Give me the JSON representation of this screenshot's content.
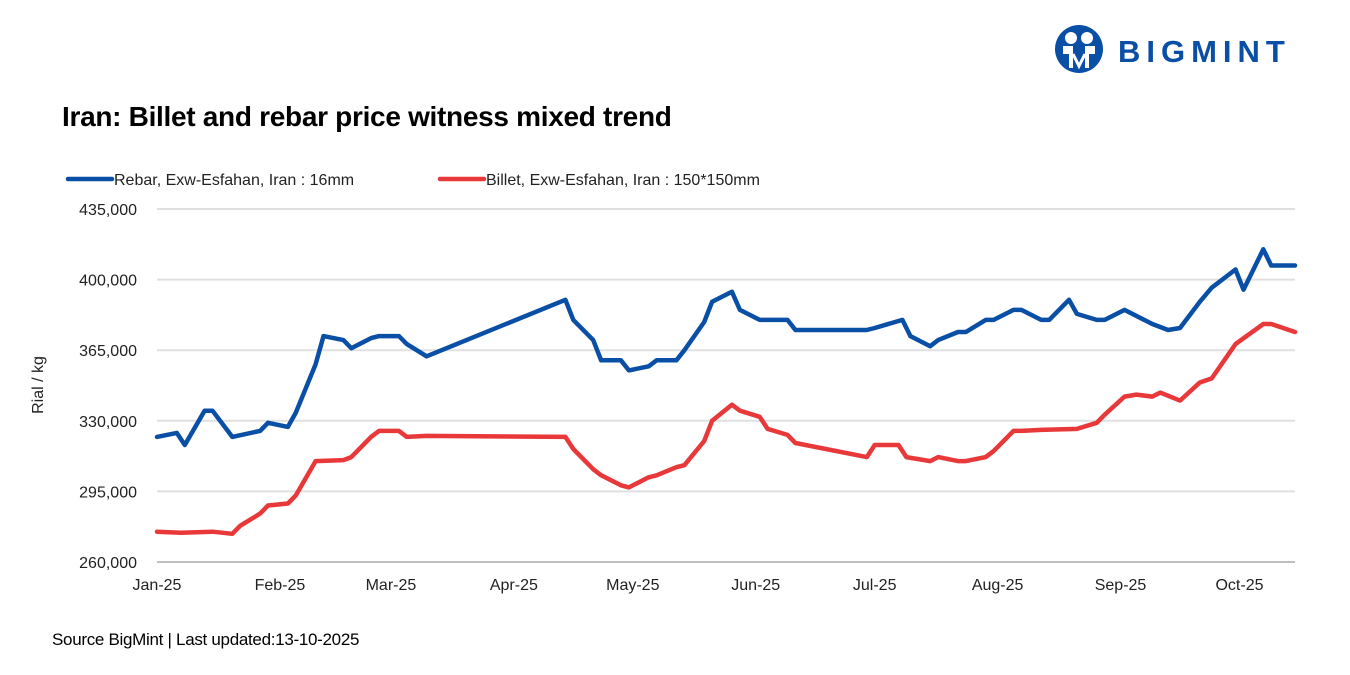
{
  "title": "Iran: Billet and rebar price witness mixed trend",
  "source": "Source BigMint | Last updated:13-10-2025",
  "logo": {
    "text": "BIGMINT",
    "color": "#0a4fa6"
  },
  "chart_data": {
    "type": "line",
    "title": "Iran: Billet and rebar price witness mixed trend",
    "ylabel": "Rial / kg",
    "xlabel": "",
    "ylim": [
      260000,
      435000
    ],
    "yticks": [
      260000,
      295000,
      330000,
      365000,
      400000,
      435000
    ],
    "ytick_labels": [
      "260,000",
      "295,000",
      "330,000",
      "365,000",
      "400,000",
      "435,000"
    ],
    "xlim": [
      "2025-01-01",
      "2025-10-15"
    ],
    "xticks": [
      "2025-01-01",
      "2025-02-01",
      "2025-03-01",
      "2025-04-01",
      "2025-05-01",
      "2025-06-01",
      "2025-07-01",
      "2025-08-01",
      "2025-09-01",
      "2025-10-01"
    ],
    "xtick_labels": [
      "Jan-25",
      "Feb-25",
      "Mar-25",
      "Apr-25",
      "May-25",
      "Jun-25",
      "Jul-25",
      "Aug-25",
      "Sep-25",
      "Oct-25"
    ],
    "grid": "horizontal",
    "legend": "top-left",
    "series": [
      {
        "name": "Rebar, Exw-Esfahan, Iran : 16mm",
        "color": "#0a4fa6",
        "points": [
          [
            "2025-01-01",
            322000
          ],
          [
            "2025-01-06",
            324000
          ],
          [
            "2025-01-08",
            318000
          ],
          [
            "2025-01-13",
            335000
          ],
          [
            "2025-01-15",
            335000
          ],
          [
            "2025-01-20",
            322000
          ],
          [
            "2025-01-27",
            325000
          ],
          [
            "2025-01-29",
            329000
          ],
          [
            "2025-02-03",
            327000
          ],
          [
            "2025-02-05",
            334000
          ],
          [
            "2025-02-10",
            358000
          ],
          [
            "2025-02-12",
            372000
          ],
          [
            "2025-02-17",
            370000
          ],
          [
            "2025-02-19",
            366000
          ],
          [
            "2025-02-24",
            371000
          ],
          [
            "2025-02-26",
            372000
          ],
          [
            "2025-03-03",
            372000
          ],
          [
            "2025-03-05",
            368000
          ],
          [
            "2025-03-10",
            362000
          ],
          [
            "2025-04-14",
            390000
          ],
          [
            "2025-04-16",
            380000
          ],
          [
            "2025-04-21",
            370000
          ],
          [
            "2025-04-23",
            360000
          ],
          [
            "2025-04-28",
            360000
          ],
          [
            "2025-04-30",
            355000
          ],
          [
            "2025-05-05",
            357000
          ],
          [
            "2025-05-07",
            360000
          ],
          [
            "2025-05-12",
            360000
          ],
          [
            "2025-05-14",
            365000
          ],
          [
            "2025-05-19",
            379000
          ],
          [
            "2025-05-21",
            389000
          ],
          [
            "2025-05-26",
            394000
          ],
          [
            "2025-05-28",
            385000
          ],
          [
            "2025-06-02",
            380000
          ],
          [
            "2025-06-09",
            380000
          ],
          [
            "2025-06-11",
            375000
          ],
          [
            "2025-06-16",
            375000
          ],
          [
            "2025-06-29",
            375000
          ],
          [
            "2025-07-01",
            376000
          ],
          [
            "2025-07-08",
            380000
          ],
          [
            "2025-07-10",
            372000
          ],
          [
            "2025-07-15",
            367000
          ],
          [
            "2025-07-17",
            370000
          ],
          [
            "2025-07-22",
            374000
          ],
          [
            "2025-07-24",
            374000
          ],
          [
            "2025-07-29",
            380000
          ],
          [
            "2025-07-31",
            380000
          ],
          [
            "2025-08-05",
            385000
          ],
          [
            "2025-08-07",
            385000
          ],
          [
            "2025-08-12",
            380000
          ],
          [
            "2025-08-14",
            380000
          ],
          [
            "2025-08-19",
            390000
          ],
          [
            "2025-08-21",
            383000
          ],
          [
            "2025-08-26",
            380000
          ],
          [
            "2025-08-28",
            380000
          ],
          [
            "2025-09-02",
            385000
          ],
          [
            "2025-09-09",
            378000
          ],
          [
            "2025-09-13",
            375000
          ],
          [
            "2025-09-16",
            376000
          ],
          [
            "2025-09-21",
            389000
          ],
          [
            "2025-09-24",
            396000
          ],
          [
            "2025-09-30",
            405000
          ],
          [
            "2025-10-02",
            395000
          ],
          [
            "2025-10-07",
            415000
          ],
          [
            "2025-10-09",
            407000
          ],
          [
            "2025-10-15",
            407000
          ]
        ]
      },
      {
        "name": "Billet, Exw-Esfahan, Iran : 150*150mm",
        "color": "#e8383a",
        "points": [
          [
            "2025-01-01",
            275000
          ],
          [
            "2025-01-07",
            274500
          ],
          [
            "2025-01-15",
            275000
          ],
          [
            "2025-01-20",
            274000
          ],
          [
            "2025-01-22",
            278000
          ],
          [
            "2025-01-27",
            284000
          ],
          [
            "2025-01-29",
            288000
          ],
          [
            "2025-02-03",
            289000
          ],
          [
            "2025-02-05",
            293000
          ],
          [
            "2025-02-10",
            310000
          ],
          [
            "2025-02-17",
            310500
          ],
          [
            "2025-02-19",
            312000
          ],
          [
            "2025-02-24",
            322000
          ],
          [
            "2025-02-26",
            325000
          ],
          [
            "2025-03-03",
            325000
          ],
          [
            "2025-03-05",
            322000
          ],
          [
            "2025-03-10",
            322500
          ],
          [
            "2025-04-14",
            322000
          ],
          [
            "2025-04-16",
            316000
          ],
          [
            "2025-04-21",
            306000
          ],
          [
            "2025-04-23",
            303000
          ],
          [
            "2025-04-28",
            298000
          ],
          [
            "2025-04-30",
            297000
          ],
          [
            "2025-05-05",
            302000
          ],
          [
            "2025-05-07",
            303000
          ],
          [
            "2025-05-12",
            307000
          ],
          [
            "2025-05-14",
            308000
          ],
          [
            "2025-05-19",
            320000
          ],
          [
            "2025-05-21",
            330000
          ],
          [
            "2025-05-26",
            338000
          ],
          [
            "2025-05-28",
            335000
          ],
          [
            "2025-06-02",
            332000
          ],
          [
            "2025-06-04",
            326000
          ],
          [
            "2025-06-09",
            323000
          ],
          [
            "2025-06-11",
            319000
          ],
          [
            "2025-06-29",
            312000
          ],
          [
            "2025-07-01",
            318000
          ],
          [
            "2025-07-07",
            318000
          ],
          [
            "2025-07-09",
            312000
          ],
          [
            "2025-07-15",
            310000
          ],
          [
            "2025-07-17",
            312000
          ],
          [
            "2025-07-22",
            310000
          ],
          [
            "2025-07-24",
            310000
          ],
          [
            "2025-07-29",
            312000
          ],
          [
            "2025-07-31",
            315000
          ],
          [
            "2025-08-05",
            325000
          ],
          [
            "2025-08-07",
            325000
          ],
          [
            "2025-08-12",
            325500
          ],
          [
            "2025-08-21",
            326000
          ],
          [
            "2025-08-26",
            329000
          ],
          [
            "2025-08-28",
            333000
          ],
          [
            "2025-09-02",
            342000
          ],
          [
            "2025-09-05",
            343000
          ],
          [
            "2025-09-09",
            342000
          ],
          [
            "2025-09-11",
            344000
          ],
          [
            "2025-09-16",
            340000
          ],
          [
            "2025-09-21",
            349000
          ],
          [
            "2025-09-24",
            351000
          ],
          [
            "2025-09-30",
            368000
          ],
          [
            "2025-10-07",
            378000
          ],
          [
            "2025-10-09",
            378000
          ],
          [
            "2025-10-15",
            374000
          ]
        ]
      }
    ]
  }
}
